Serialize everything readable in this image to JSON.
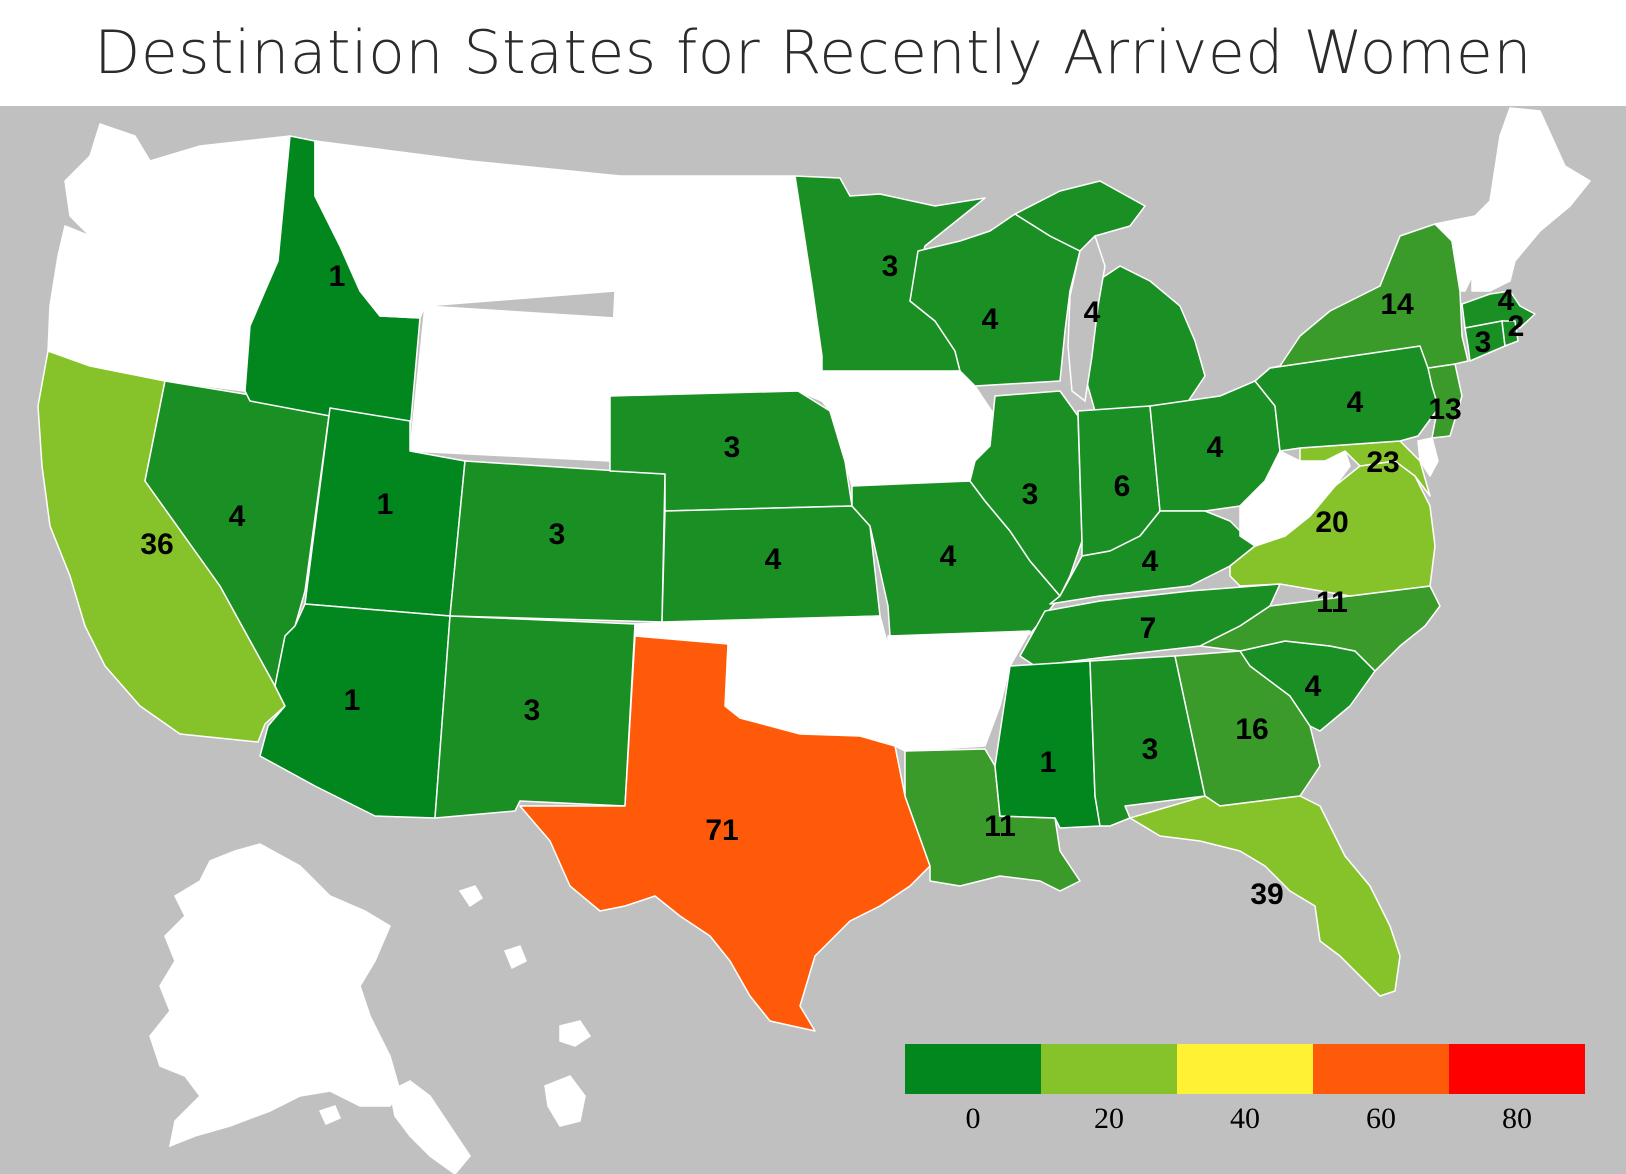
{
  "title": "Destination States for Recently Arrived Women",
  "colors": {
    "background": "#c0c0c0",
    "no_data": "#ffffff",
    "bin_0_20_dark": "#02871e",
    "bin_0_20": "#1a8f24",
    "bin_0_20_light": "#3a9b2a",
    "bin_20_40": "#86c22a",
    "bin_40_60": "#f5f535",
    "bin_60_80": "#ff5a0a",
    "bin_80_100": "#ff0000"
  },
  "legend": {
    "type": "binned color scale",
    "bins": [
      {
        "from": 0,
        "to": 20,
        "color": "#02871e"
      },
      {
        "from": 20,
        "to": 40,
        "color": "#86c22a"
      },
      {
        "from": 40,
        "to": 60,
        "color": "#fff235"
      },
      {
        "from": 60,
        "to": 80,
        "color": "#ff5a0a"
      },
      {
        "from": 80,
        "to": 100,
        "color": "#ff0000"
      }
    ],
    "tick_labels": [
      "0",
      "20",
      "40",
      "60",
      "80"
    ]
  },
  "states": [
    {
      "id": "WA",
      "value": null
    },
    {
      "id": "OR",
      "value": null
    },
    {
      "id": "CA",
      "value": 36
    },
    {
      "id": "NV",
      "value": 4
    },
    {
      "id": "ID",
      "value": 1
    },
    {
      "id": "MT",
      "value": null
    },
    {
      "id": "WY",
      "value": null
    },
    {
      "id": "UT",
      "value": 1
    },
    {
      "id": "AZ",
      "value": 1
    },
    {
      "id": "CO",
      "value": 3
    },
    {
      "id": "NM",
      "value": 3
    },
    {
      "id": "ND",
      "value": null
    },
    {
      "id": "SD",
      "value": null
    },
    {
      "id": "NE",
      "value": 3
    },
    {
      "id": "KS",
      "value": 4
    },
    {
      "id": "OK",
      "value": null
    },
    {
      "id": "TX",
      "value": 71
    },
    {
      "id": "MN",
      "value": 3
    },
    {
      "id": "IA",
      "value": null
    },
    {
      "id": "MO",
      "value": 4
    },
    {
      "id": "AR",
      "value": null
    },
    {
      "id": "LA",
      "value": 11
    },
    {
      "id": "WI",
      "value": 4
    },
    {
      "id": "IL",
      "value": 3
    },
    {
      "id": "MI",
      "value": 4
    },
    {
      "id": "IN",
      "value": 6
    },
    {
      "id": "OH",
      "value": 4
    },
    {
      "id": "KY",
      "value": 4
    },
    {
      "id": "TN",
      "value": 7
    },
    {
      "id": "MS",
      "value": 1
    },
    {
      "id": "AL",
      "value": 3
    },
    {
      "id": "GA",
      "value": 16
    },
    {
      "id": "FL",
      "value": 39
    },
    {
      "id": "SC",
      "value": 4
    },
    {
      "id": "NC",
      "value": 11
    },
    {
      "id": "VA",
      "value": 20
    },
    {
      "id": "WV",
      "value": null
    },
    {
      "id": "MD",
      "value": 23
    },
    {
      "id": "DE",
      "value": null
    },
    {
      "id": "PA",
      "value": 4
    },
    {
      "id": "NJ",
      "value": 13
    },
    {
      "id": "NY",
      "value": 14
    },
    {
      "id": "CT",
      "value": 3
    },
    {
      "id": "RI",
      "value": 2
    },
    {
      "id": "MA",
      "value": 4
    },
    {
      "id": "VT",
      "value": null
    },
    {
      "id": "NH",
      "value": null
    },
    {
      "id": "ME",
      "value": null
    },
    {
      "id": "AK",
      "value": null
    }
  ]
}
